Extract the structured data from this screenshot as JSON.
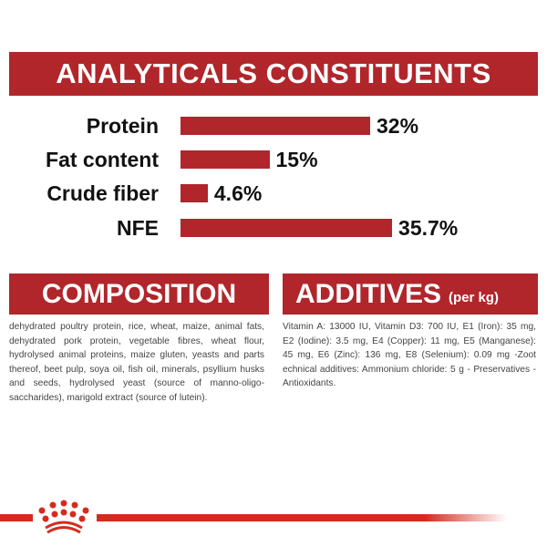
{
  "analytical": {
    "title": "ANALYTICALS CONSTITUENTS"
  },
  "chart_data": {
    "type": "bar",
    "orientation": "horizontal",
    "categories": [
      "Protein",
      "Fat content",
      "Crude fiber",
      "NFE"
    ],
    "values": [
      32,
      15,
      4.6,
      35.7
    ],
    "value_labels": [
      "32%",
      "15%",
      "4.6%",
      "35.7%"
    ],
    "unit": "%",
    "bar_color": "#b0262b",
    "grid": false
  },
  "composition": {
    "title": "COMPOSITION",
    "text": "dehydrated poultry protein, rice, wheat, maize, animal fats, dehydrated pork protein, vegetable fibres, wheat flour, hydrolysed animal proteins, maize gluten, yeasts and parts thereof, beet pulp, soya oil, fish oil, minerals, psyllium husks and seeds, hydrolysed yeast (source of manno-oligo-saccharides), marigold extract (source of lutein)."
  },
  "additives": {
    "title": "ADDITIVES",
    "subtitle": "(per kg)",
    "text": "Vitamin A: 13000 IU, Vitamin D3: 700 IU, E1 (Iron): 35 mg, E2 (Iodine): 3.5 mg, E4 (Copper): 11 mg, E5 (Manganese): 45 mg, E6 (Zinc): 136 mg, E8 (Selenium): 0.09 mg -Zoot echnical additives: Ammonium chloride: 5 g - Preservatives - Antioxidants."
  },
  "colors": {
    "banner": "#b0262b",
    "logo": "#d52b1e"
  },
  "logo": {
    "icon": "crown-icon"
  }
}
